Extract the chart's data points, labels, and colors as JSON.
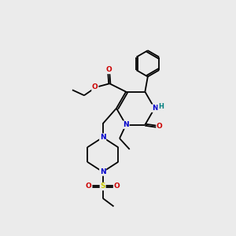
{
  "bg_color": "#ebebeb",
  "bond_color": "#000000",
  "N_color": "#0000cc",
  "O_color": "#cc0000",
  "S_color": "#cccc00",
  "H_color": "#008080",
  "font_size": 6.5,
  "linewidth": 1.3,
  "figsize": [
    3.0,
    3.0
  ],
  "dpi": 100,
  "xlim": [
    0,
    10
  ],
  "ylim": [
    0,
    10
  ]
}
